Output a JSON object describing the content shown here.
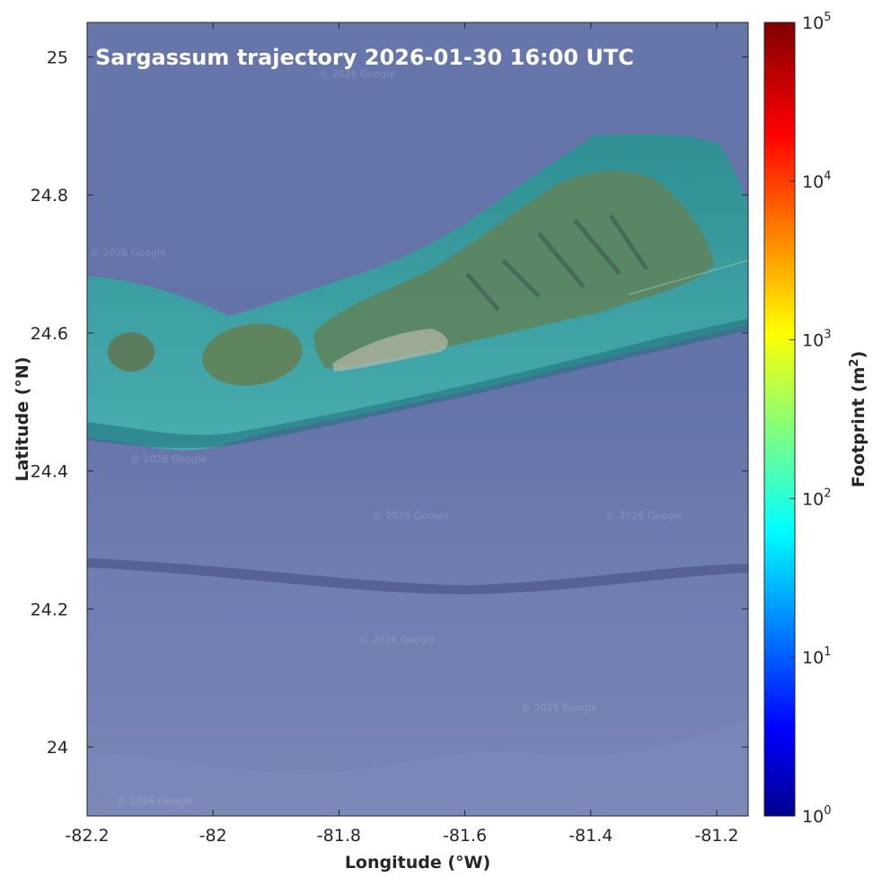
{
  "map": {
    "title": "Sargassum trajectory 2026-01-30 16:00 UTC",
    "xlabel": "Longitude (°W)",
    "ylabel": "Latitude (°N)",
    "xlim": [
      -82.2,
      -81.15
    ],
    "ylim": [
      23.9,
      25.05
    ],
    "xticks": [
      -82.2,
      -82,
      -81.8,
      -81.6,
      -81.4,
      -81.2
    ],
    "xtick_labels": [
      "-82.2",
      "-82",
      "-81.8",
      "-81.6",
      "-81.4",
      "-81.2"
    ],
    "yticks": [
      24,
      24.2,
      24.4,
      24.6,
      24.8,
      25
    ],
    "ytick_labels": [
      "24",
      "24.2",
      "24.4",
      "24.6",
      "24.8",
      "25"
    ],
    "watermark": "© 2026 Google",
    "colors": {
      "deep_water": "#6a79ad",
      "shelf_water": "#3fa3a2",
      "island": "#5e8465",
      "title_text": "#ffffff"
    }
  },
  "colorbar": {
    "label": "Footprint (m²)",
    "label_base": "Footprint (m",
    "label_sup": "2",
    "label_close": ")",
    "scale": "log",
    "colormap": "jet",
    "range": [
      1,
      100000
    ],
    "ticks": [
      {
        "base": "10",
        "exp": "0",
        "value": 1
      },
      {
        "base": "10",
        "exp": "1",
        "value": 10
      },
      {
        "base": "10",
        "exp": "2",
        "value": 100
      },
      {
        "base": "10",
        "exp": "3",
        "value": 1000
      },
      {
        "base": "10",
        "exp": "4",
        "value": 10000
      },
      {
        "base": "10",
        "exp": "5",
        "value": 100000
      }
    ]
  }
}
